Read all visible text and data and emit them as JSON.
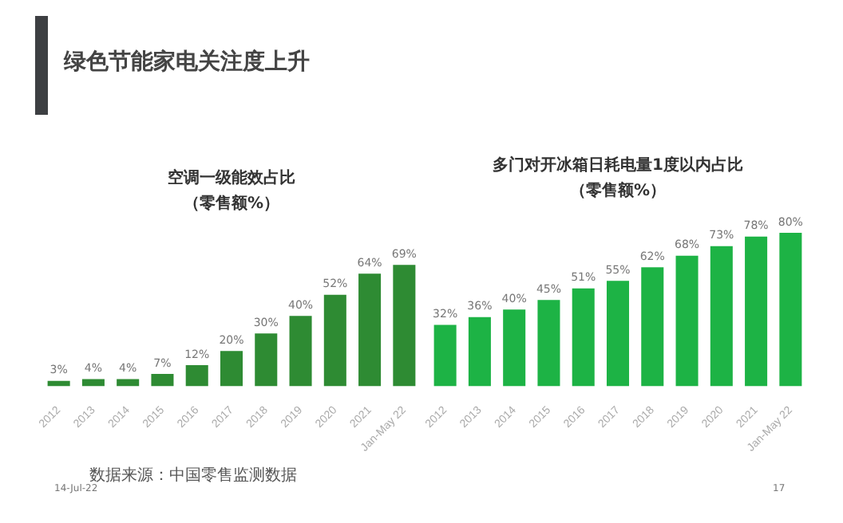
{
  "chart_data": [
    {
      "type": "bar",
      "title": "空调一级能效占比",
      "subtitle": "（零售额%）",
      "categories": [
        "2012",
        "2013",
        "2014",
        "2015",
        "2016",
        "2017",
        "2018",
        "2019",
        "2020",
        "2021",
        "Jan-May 22"
      ],
      "values": [
        3,
        4,
        4,
        7,
        12,
        20,
        30,
        40,
        52,
        64,
        69
      ],
      "color": "#2e8b33",
      "value_labels": [
        "3%",
        "4%",
        "4%",
        "7%",
        "12%",
        "20%",
        "30%",
        "40%",
        "52%",
        "64%",
        "69%"
      ],
      "tick_labels": "x",
      "annotations": [
        "绿色节能家电关注度上升",
        "数据来源：中国零售监测数据",
        "14-Jul-22"
      ]
    },
    {
      "type": "bar",
      "title": "多门对开冰箱日耗电量1度以内占比",
      "subtitle": "（零售额%）",
      "categories": [
        "2012",
        "2013",
        "2014",
        "2015",
        "2016",
        "2017",
        "2018",
        "2019",
        "2020",
        "2021",
        "Jan-May 22"
      ],
      "values": [
        32,
        36,
        40,
        45,
        51,
        55,
        62,
        68,
        73,
        78,
        80
      ],
      "color": "#1db345",
      "value_labels": [
        "32%",
        "36%",
        "40%",
        "45%",
        "51%",
        "55%",
        "62%",
        "68%",
        "73%",
        "78%",
        "80%"
      ],
      "tick_labels": "x",
      "annotations": [
        "17"
      ]
    }
  ]
}
